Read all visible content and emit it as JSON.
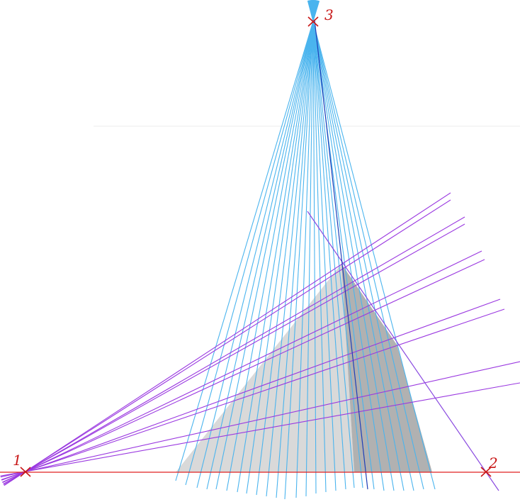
{
  "vanishing_points": [
    {
      "label": "1"
    },
    {
      "label": "2"
    },
    {
      "label": "3"
    }
  ],
  "colors": {
    "horizon": "#e02020",
    "vp_marker": "#c81818",
    "vp_label": "#c81818",
    "vp3_rays": "#4ab4ee",
    "vp1_rays": "#9a38e0",
    "vp2_line": "#8a4ae0",
    "edge_line": "#1f3fb8",
    "face_front": "#d9d9d9",
    "face_side": "#b1b1b1",
    "faint_line": "#eeeeee"
  }
}
